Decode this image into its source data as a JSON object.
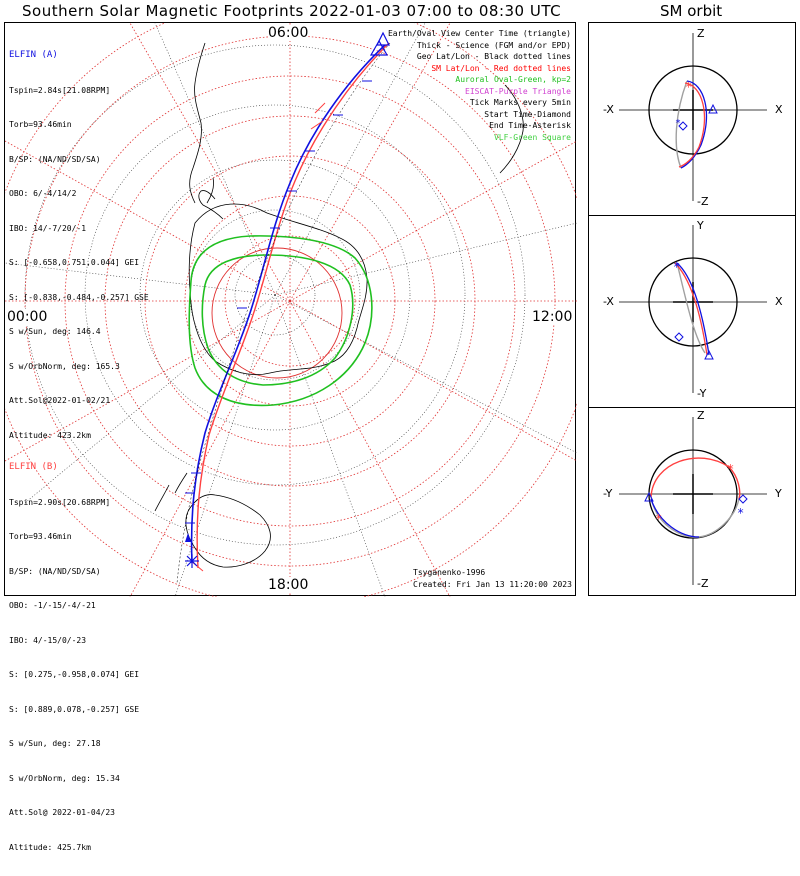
{
  "title": "Southern Solar Magnetic Footprints 2022-01-03 07:00 to 08:30 UTC",
  "sm_title": "SM orbit",
  "elfin_a": {
    "name": "ELFIN (A)",
    "color": "#1010e0",
    "lines": [
      "Tspin=2.84s[21.08RPM]",
      "Torb=93.46min",
      "B/SP: (NA/ND/SD/SA)",
      "OBO: 6/-4/14/2",
      "IBO: 14/-7/20/-1",
      "S: [-0.658,0.751,0.044] GEI",
      "S: [-0.838,-0.484,-0.257] GSE",
      "S w/Sun, deg: 146.4",
      "S w/OrbNorm, deg: 165.3",
      "Att.Sol@2022-01-02/21",
      "Altitude: 423.2km"
    ]
  },
  "elfin_b": {
    "name": "ELFIN (B)",
    "color": "#ff4040",
    "lines": [
      "Tspin=2.90s[20.68RPM]",
      "Torb=93.46min",
      "B/SP: (NA/ND/SD/SA)",
      "OBO: -1/-15/-4/-21",
      "IBO: 4/-15/0/-23",
      "S: [0.275,-0.958,0.074] GEI",
      "S: [0.889,0.078,-0.257] GSE",
      "S w/Sun, deg: 27.18",
      "S w/OrbNorm, deg: 15.34",
      "Att.Sol@ 2022-01-04/23",
      "Altitude: 425.7km"
    ]
  },
  "legend": [
    {
      "text": "Earth/Oval View Center Time (triangle)",
      "color": "#000000"
    },
    {
      "text": "Thick - Science (FGM and/or EPD)",
      "color": "#000000"
    },
    {
      "text": "Geo Lat/Lon - Black dotted lines",
      "color": "#000000"
    },
    {
      "text": "SM Lat/Lon - Red dotted lines",
      "color": "#ff0000"
    },
    {
      "text": "Auroral Oval-Green, kp=2",
      "color": "#20c020"
    },
    {
      "text": "EISCAT-Purple Triangle",
      "color": "#d040d0"
    },
    {
      "text": "Tick Marks every 5min",
      "color": "#000000"
    },
    {
      "text": "Start Time-Diamond",
      "color": "#000000"
    },
    {
      "text": "End Time-Asterisk",
      "color": "#000000"
    },
    {
      "text": "VLF-Green Square",
      "color": "#40d040"
    }
  ],
  "hours": {
    "top": "06:00",
    "left": "00:00",
    "right": "12:00",
    "bottom": "18:00"
  },
  "credit": {
    "author": "Tsyganenko-1996",
    "created": "Created: Fri Jan 13 11:20:00 2023"
  },
  "sm_panels": [
    {
      "top": "Z",
      "bottom": "-Z",
      "left": "-X",
      "right": "X"
    },
    {
      "top": "Y",
      "bottom": "-Y",
      "left": "-X",
      "right": "X"
    },
    {
      "top": "Z",
      "bottom": "-Z",
      "left": "-Y",
      "right": "Y"
    }
  ],
  "colors": {
    "oval": "#20c020",
    "sm_grid": "#e03030",
    "track_a": "#1010e0",
    "track_b": "#ff4040",
    "orbit_gray": "#a0a0a0"
  }
}
